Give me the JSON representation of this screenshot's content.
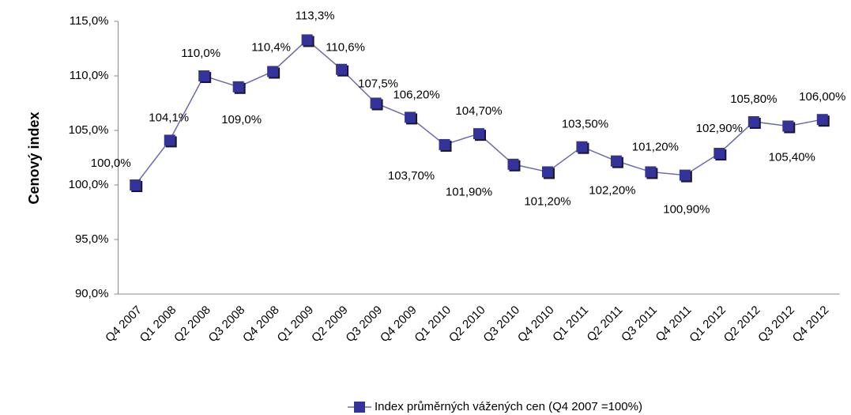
{
  "chart_data": {
    "type": "line",
    "y_label": "Cenový index",
    "categories": [
      "Q4 2007",
      "Q1 2008",
      "Q2 2008",
      "Q3 2008",
      "Q4 2008",
      "Q1 2009",
      "Q2 2009",
      "Q3 2009",
      "Q4 2009",
      "Q1 2010",
      "Q2 2010",
      "Q3 2010",
      "Q4 2010",
      "Q1 2011",
      "Q2 2011",
      "Q3 2011",
      "Q4 2011",
      "Q1 2012",
      "Q2 2012",
      "Q3 2012",
      "Q4 2012"
    ],
    "series": [
      {
        "name": "Index průměrných vážených cen (Q4 2007 =100%)",
        "color": "#333399",
        "values": [
          100,
          104.1,
          110,
          109,
          110.4,
          113.3,
          110.6,
          107.5,
          106.2,
          103.7,
          104.7,
          101.9,
          101.2,
          103.5,
          102.2,
          101.2,
          100.9,
          102.9,
          105.8,
          105.4,
          106.0
        ],
        "value_labels": [
          "100,0%",
          "104,1%",
          "110,0%",
          "109,0%",
          "110,4%",
          "113,3%",
          "110,6%",
          "107,5%",
          "106,20%",
          "103,70%",
          "104,70%",
          "101,90%",
          "101,20%",
          "103,50%",
          "102,20%",
          "101,20%",
          "100,90%",
          "102,90%",
          "105,80%",
          "105,40%",
          "106,00%"
        ]
      }
    ],
    "ylim": [
      90,
      115
    ],
    "yticks": [
      {
        "value": 90,
        "label": "90,0%"
      },
      {
        "value": 95,
        "label": "95,0%"
      },
      {
        "value": 100,
        "label": "100,0%"
      },
      {
        "value": 105,
        "label": "105,0%"
      },
      {
        "value": 110,
        "label": "110,0%"
      },
      {
        "value": 115,
        "label": "115,0%"
      }
    ],
    "grid": false,
    "legend": "bottom"
  }
}
